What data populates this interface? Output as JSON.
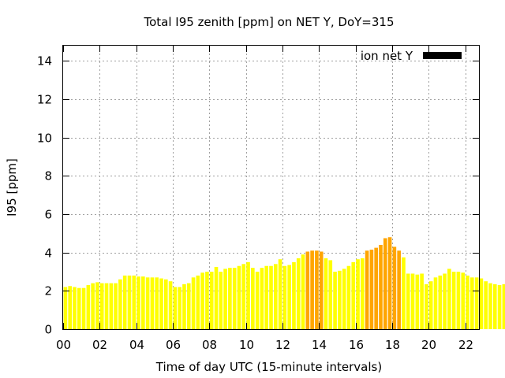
{
  "chart_data": {
    "type": "bar",
    "title": "Total I95 zenith [ppm] on NET Y, DoY=315",
    "xlabel": "Time of day UTC (15-minute intervals)",
    "ylabel": "I95 [ppm]",
    "xlim": [
      0,
      22.75
    ],
    "ylim": [
      0,
      14.8
    ],
    "x_ticks": [
      0,
      2,
      4,
      6,
      8,
      10,
      12,
      14,
      16,
      18,
      20,
      22
    ],
    "x_tick_labels": [
      "00",
      "02",
      "04",
      "06",
      "08",
      "10",
      "12",
      "14",
      "16",
      "18",
      "20",
      "22"
    ],
    "y_ticks": [
      0,
      2,
      4,
      6,
      8,
      10,
      12,
      14
    ],
    "y_tick_labels": [
      "0",
      "2",
      "4",
      "6",
      "8",
      "10",
      "12",
      "14"
    ],
    "grid": true,
    "legend_position": "top-right",
    "legend_label": "ion net Y",
    "legend_color": "#000000",
    "bar_interval_hours": 0.25,
    "bar_width_fraction": 0.8,
    "threshold": 4.0,
    "colors": {
      "normal": "#ffff00",
      "elevated": "#ffa500"
    },
    "values": [
      2.2,
      2.25,
      2.2,
      2.15,
      2.15,
      2.3,
      2.4,
      2.45,
      2.4,
      2.4,
      2.4,
      2.4,
      2.6,
      2.8,
      2.8,
      2.8,
      2.75,
      2.75,
      2.7,
      2.7,
      2.7,
      2.65,
      2.6,
      2.5,
      2.2,
      2.2,
      2.35,
      2.4,
      2.7,
      2.8,
      2.95,
      3.0,
      3.0,
      3.25,
      3.0,
      3.15,
      3.2,
      3.2,
      3.3,
      3.4,
      3.5,
      3.2,
      3.0,
      3.2,
      3.3,
      3.3,
      3.4,
      3.65,
      3.3,
      3.35,
      3.5,
      3.7,
      3.9,
      4.05,
      4.1,
      4.1,
      4.05,
      3.7,
      3.6,
      3.0,
      3.05,
      3.15,
      3.3,
      3.5,
      3.65,
      3.7,
      4.1,
      4.15,
      4.25,
      4.4,
      4.75,
      4.8,
      4.3,
      4.1,
      3.75,
      2.9,
      2.9,
      2.85,
      2.9,
      2.35,
      2.5,
      2.7,
      2.8,
      2.9,
      3.15,
      3.0,
      3.0,
      2.95,
      2.8,
      2.7,
      2.7,
      2.65,
      2.5,
      2.4,
      2.35,
      2.3,
      2.35
    ]
  }
}
